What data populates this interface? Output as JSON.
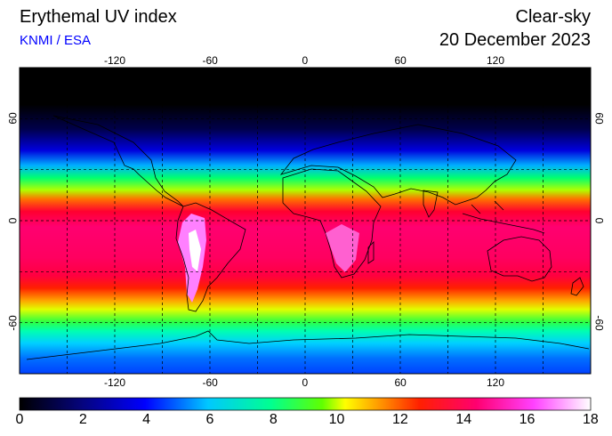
{
  "header": {
    "title": "Erythemal UV index",
    "source": "KNMI / ESA",
    "condition": "Clear-sky",
    "date": "20 December 2023",
    "source_color": "#0000ff"
  },
  "map": {
    "projection": "plate-carree",
    "lon_range": [
      -180,
      180
    ],
    "lat_range": [
      -90,
      90
    ],
    "lon_ticks": [
      -120,
      -60,
      0,
      60,
      120
    ],
    "lat_ticks": [
      60,
      0,
      -60
    ],
    "lon_grid": [
      -150,
      -120,
      -90,
      -60,
      -30,
      0,
      30,
      60,
      90,
      120,
      150
    ],
    "lat_grid": [
      60,
      30,
      0,
      -30,
      -60
    ],
    "grid_style": "dashed"
  },
  "colorbar": {
    "min": 0,
    "max": 18,
    "ticks": [
      "0",
      "2",
      "4",
      "6",
      "8",
      "10",
      "12",
      "14",
      "16",
      "18"
    ],
    "colors": [
      "#000000",
      "#05047e",
      "#0000ff",
      "#00c8ff",
      "#00ff90",
      "#60ff00",
      "#ffff00",
      "#ff2000",
      "#ff0070",
      "#ff40ff",
      "#ffffff"
    ]
  }
}
